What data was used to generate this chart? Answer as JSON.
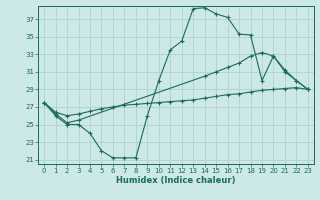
{
  "xlabel": "Humidex (Indice chaleur)",
  "bg_color": "#cce8e8",
  "line_color": "#1a6b5a",
  "grid_color": "#aacece",
  "xlim": [
    -0.5,
    23.5
  ],
  "ylim": [
    20.5,
    38.5
  ],
  "yticks": [
    21,
    23,
    25,
    27,
    29,
    31,
    33,
    35,
    37
  ],
  "xticks": [
    0,
    1,
    2,
    3,
    4,
    5,
    6,
    7,
    8,
    9,
    10,
    11,
    12,
    13,
    14,
    15,
    16,
    17,
    18,
    19,
    20,
    21,
    22,
    23
  ],
  "curve1_x": [
    0,
    1,
    2,
    3,
    4,
    5,
    6,
    7,
    8,
    9,
    10,
    11,
    12,
    13,
    14,
    15,
    16,
    17,
    18,
    19,
    20,
    21,
    22,
    23
  ],
  "curve1_y": [
    27.5,
    26.0,
    25.0,
    25.0,
    24.0,
    22.0,
    21.2,
    21.2,
    21.2,
    26.0,
    30.0,
    33.5,
    34.5,
    38.2,
    38.3,
    37.6,
    37.2,
    35.3,
    35.2,
    30.0,
    32.8,
    31.0,
    30.0,
    29.0
  ],
  "curve2_x": [
    0,
    1,
    2,
    3,
    14,
    15,
    16,
    17,
    18,
    19,
    20,
    21,
    22,
    23
  ],
  "curve2_y": [
    27.5,
    26.2,
    25.2,
    25.5,
    30.5,
    31.0,
    31.5,
    32.0,
    32.8,
    33.2,
    32.8,
    31.2,
    30.0,
    29.0
  ],
  "curve3_x": [
    0,
    1,
    2,
    3,
    4,
    5,
    6,
    7,
    8,
    9,
    10,
    11,
    12,
    13,
    14,
    15,
    16,
    17,
    18,
    19,
    20,
    21,
    22,
    23
  ],
  "curve3_y": [
    27.5,
    26.4,
    26.0,
    26.2,
    26.5,
    26.8,
    27.0,
    27.2,
    27.3,
    27.4,
    27.5,
    27.6,
    27.7,
    27.8,
    28.0,
    28.2,
    28.4,
    28.5,
    28.7,
    28.9,
    29.0,
    29.1,
    29.2,
    29.0
  ]
}
